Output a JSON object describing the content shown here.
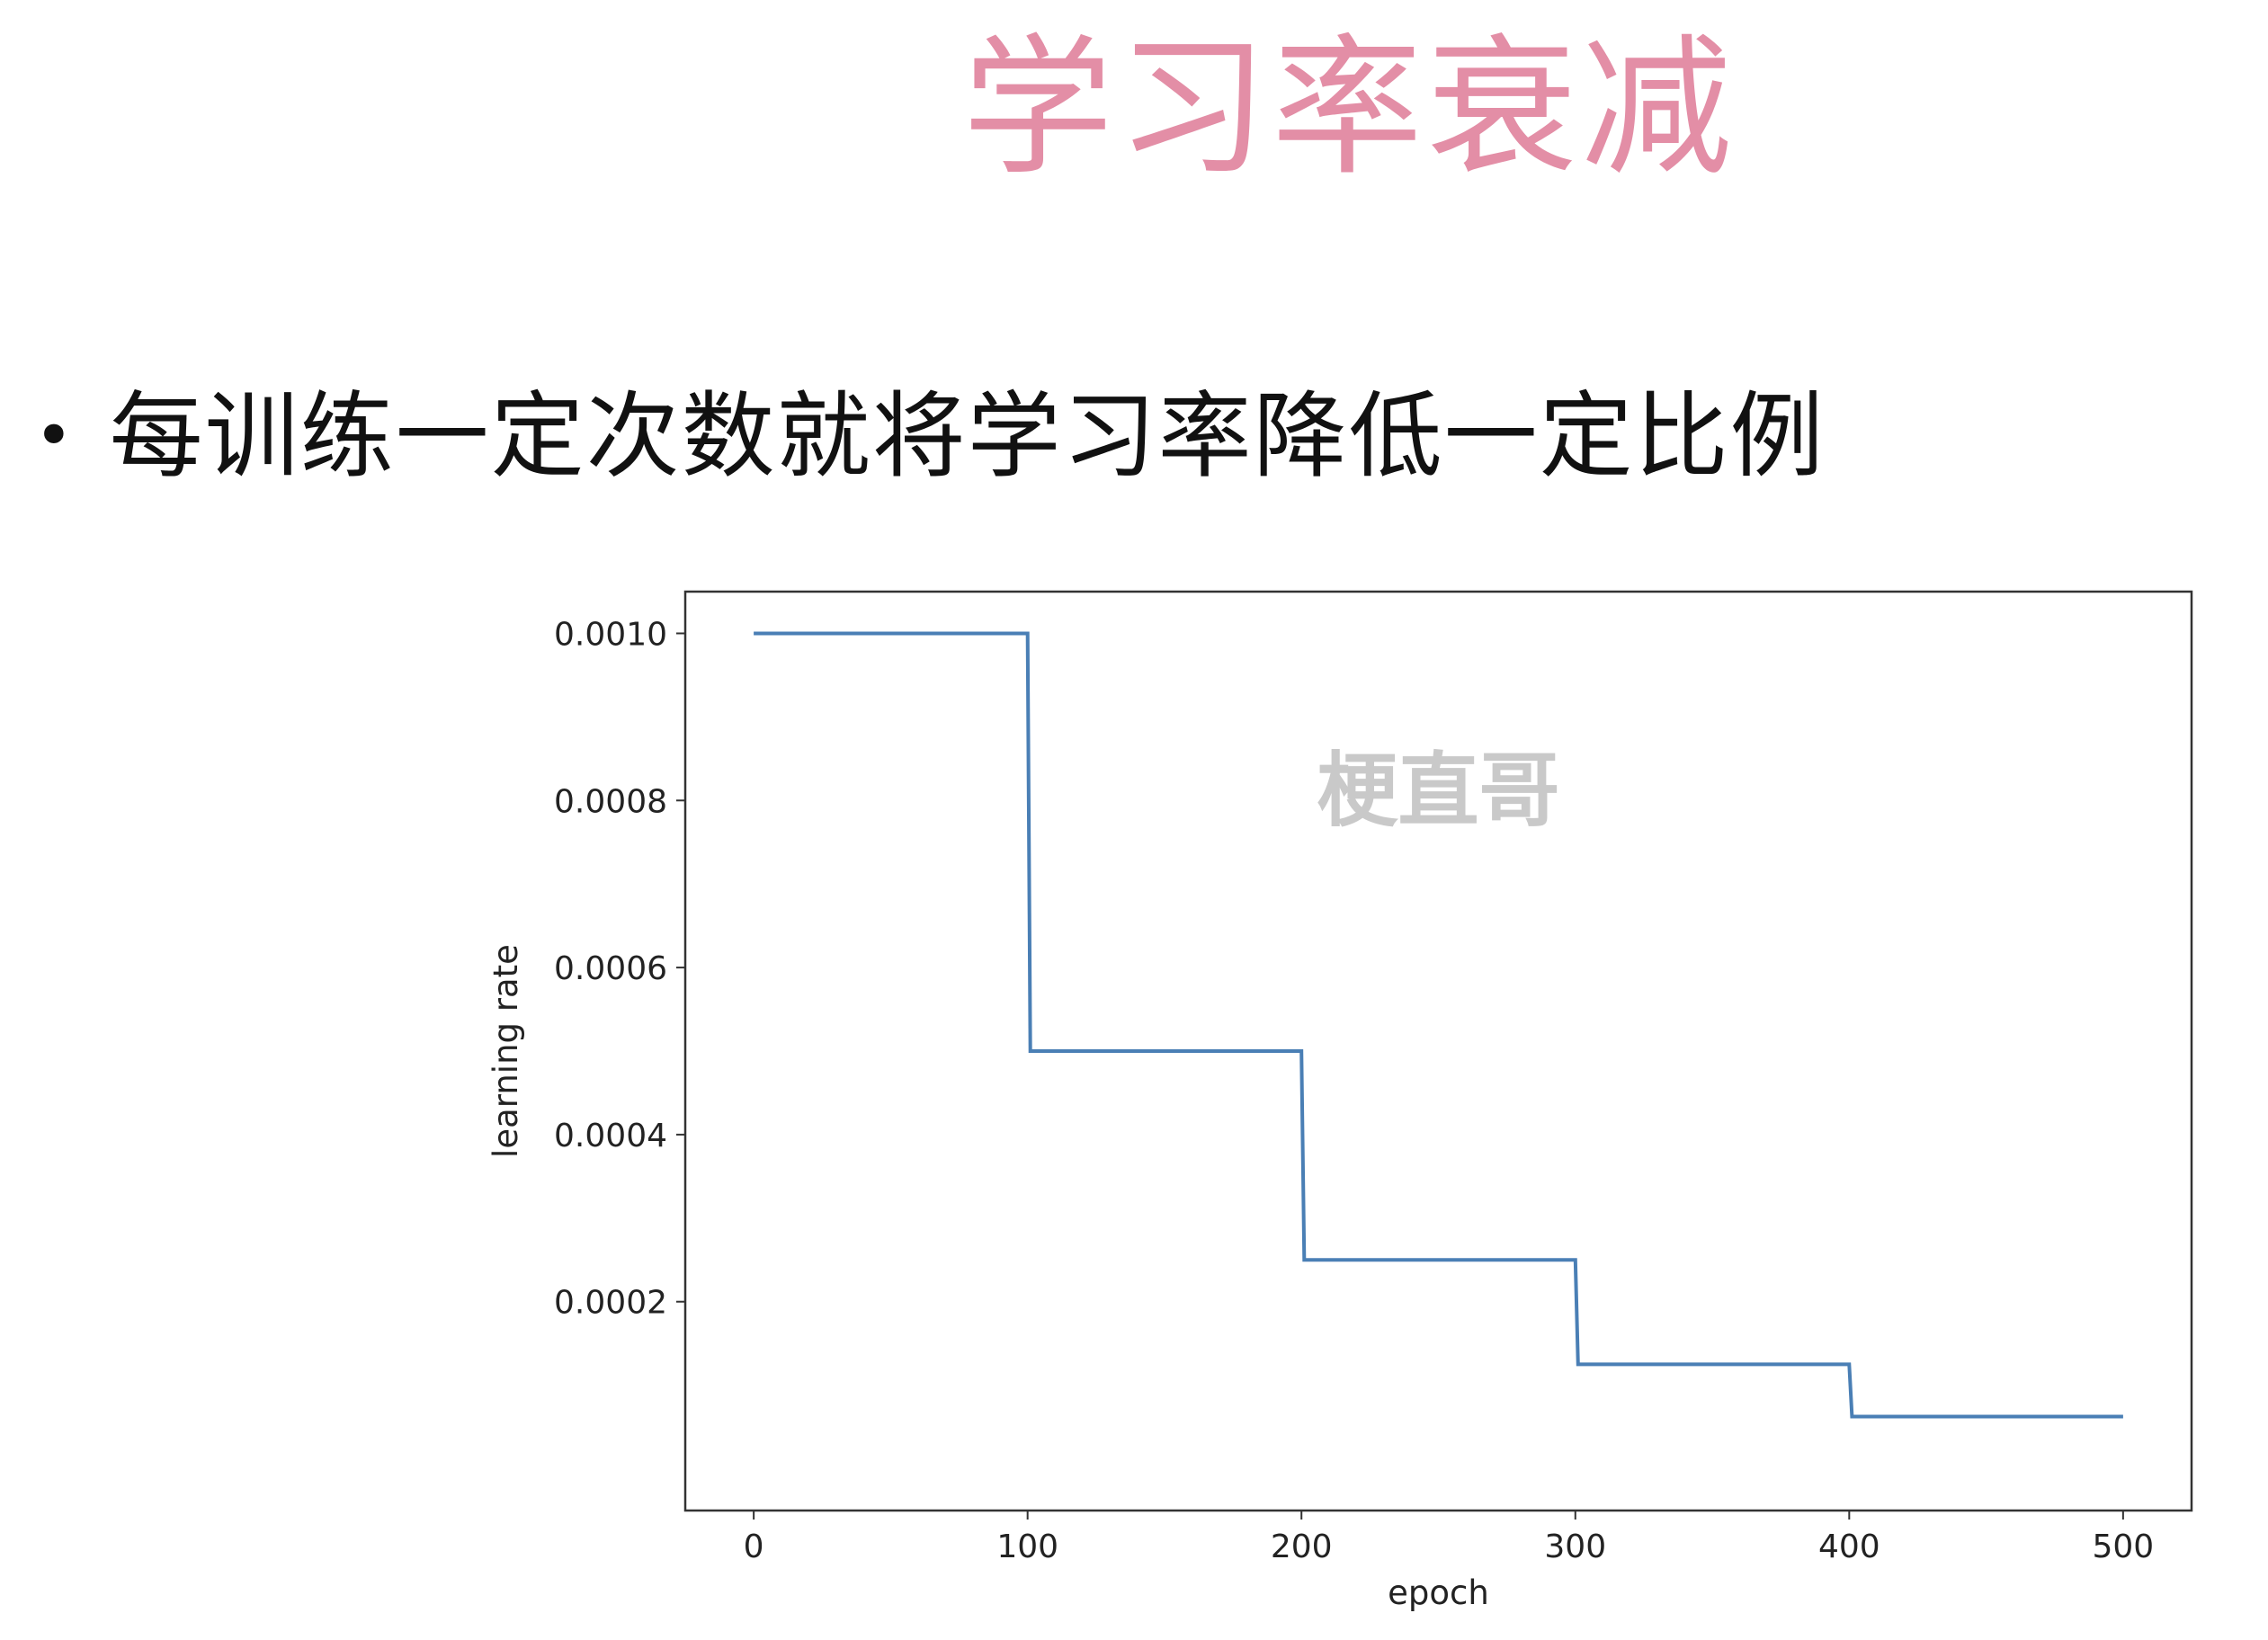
{
  "slide": {
    "title": "学习率衰减",
    "bullet": "每训练一定次数就将学习率降低一定比例",
    "title_color": "#e38ea6"
  },
  "chart_data": {
    "type": "line",
    "xlabel": "epoch",
    "ylabel": "learning rate",
    "watermark": "梗直哥",
    "xlim": [
      -25,
      525
    ],
    "ylim": [
      -5e-05,
      0.00105
    ],
    "x_ticks": [
      0,
      100,
      200,
      300,
      400,
      500
    ],
    "x_tick_labels": [
      "0",
      "100",
      "200",
      "300",
      "400",
      "500"
    ],
    "y_ticks": [
      0.0002,
      0.0004,
      0.0006,
      0.0008,
      0.001
    ],
    "y_tick_labels": [
      "0.0002",
      "0.0004",
      "0.0006",
      "0.0008",
      "0.0010"
    ],
    "grid": false,
    "series": [
      {
        "color": "#4a7fb5",
        "points": [
          [
            0,
            0.001
          ],
          [
            100,
            0.001
          ],
          [
            101,
            0.0005
          ],
          [
            200,
            0.0005
          ],
          [
            201,
            0.00025
          ],
          [
            300,
            0.00025
          ],
          [
            301,
            0.000125
          ],
          [
            400,
            0.000125
          ],
          [
            401,
            6.25e-05
          ],
          [
            500,
            6.25e-05
          ]
        ]
      }
    ]
  }
}
